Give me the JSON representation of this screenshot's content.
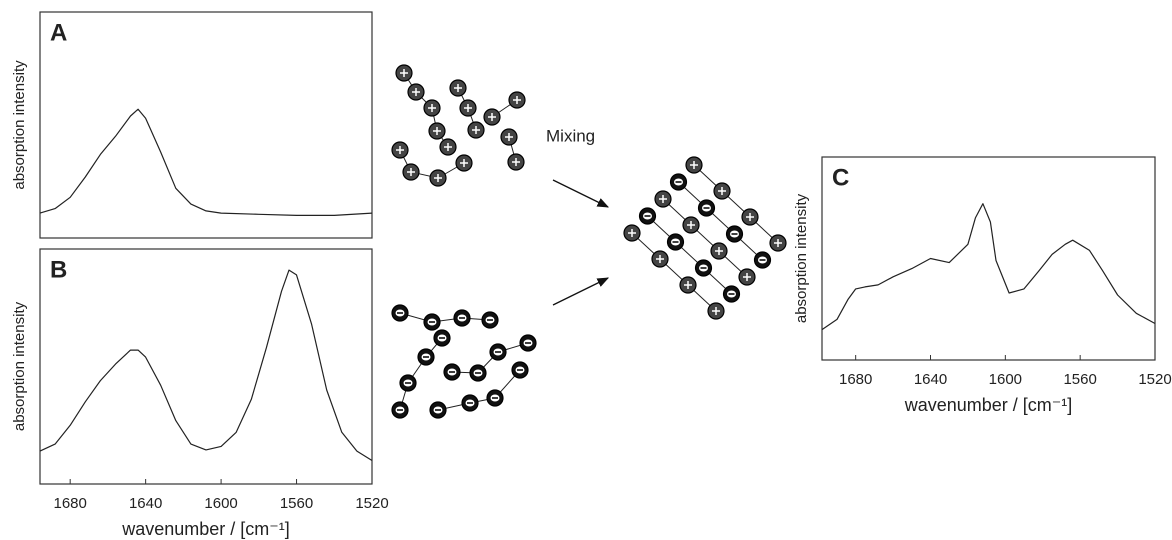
{
  "chart_data": [
    {
      "type": "line",
      "panel": "A",
      "ylabel": "absorption intensity",
      "x": [
        1696,
        1688,
        1680,
        1672,
        1664,
        1656,
        1648,
        1644,
        1640,
        1632,
        1624,
        1616,
        1608,
        1600,
        1580,
        1560,
        1540,
        1520
      ],
      "series": [
        {
          "color": "#222222",
          "values": [
            0.11,
            0.13,
            0.18,
            0.27,
            0.37,
            0.45,
            0.54,
            0.57,
            0.53,
            0.38,
            0.22,
            0.15,
            0.12,
            0.11,
            0.105,
            0.1,
            0.1,
            0.11
          ]
        }
      ],
      "xlim": [
        1696,
        1520
      ],
      "ylim": [
        0,
        1
      ]
    },
    {
      "type": "line",
      "panel": "B",
      "ylabel": "absorption intensity",
      "xlabel": "wavenumber / [cm⁻¹]",
      "x": [
        1696,
        1688,
        1680,
        1672,
        1664,
        1656,
        1648,
        1644,
        1640,
        1632,
        1624,
        1616,
        1608,
        1600,
        1592,
        1584,
        1576,
        1568,
        1564,
        1560,
        1552,
        1544,
        1536,
        1528,
        1520
      ],
      "series": [
        {
          "color": "#222222",
          "values": [
            0.14,
            0.17,
            0.25,
            0.35,
            0.44,
            0.51,
            0.57,
            0.57,
            0.54,
            0.42,
            0.27,
            0.17,
            0.145,
            0.16,
            0.22,
            0.36,
            0.58,
            0.82,
            0.91,
            0.89,
            0.68,
            0.4,
            0.22,
            0.14,
            0.1
          ]
        }
      ],
      "xlim": [
        1696,
        1520
      ],
      "ylim": [
        0,
        1
      ],
      "xticks": [
        1680,
        1640,
        1600,
        1560,
        1520
      ]
    },
    {
      "type": "line",
      "panel": "C",
      "ylabel": "absorption intensity",
      "xlabel": "wavenumber / [cm⁻¹]",
      "x": [
        1698,
        1690,
        1684,
        1680,
        1675,
        1668,
        1660,
        1650,
        1640,
        1630,
        1620,
        1616,
        1612,
        1608,
        1605,
        1598,
        1590,
        1582,
        1575,
        1568,
        1564,
        1555,
        1548,
        1540,
        1530,
        1520
      ],
      "series": [
        {
          "color": "#222222",
          "values": [
            0.15,
            0.2,
            0.3,
            0.35,
            0.36,
            0.37,
            0.41,
            0.45,
            0.5,
            0.48,
            0.57,
            0.7,
            0.77,
            0.68,
            0.49,
            0.33,
            0.35,
            0.44,
            0.52,
            0.57,
            0.59,
            0.54,
            0.44,
            0.32,
            0.23,
            0.18
          ]
        }
      ],
      "xlim": [
        1698,
        1520
      ],
      "ylim": [
        0,
        1
      ],
      "xticks": [
        1680,
        1640,
        1600,
        1560,
        1520
      ]
    }
  ],
  "annotation": "Mixing"
}
